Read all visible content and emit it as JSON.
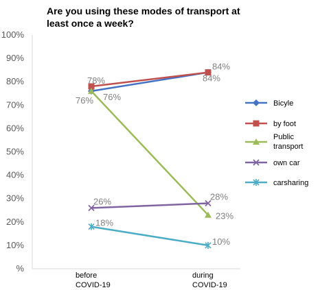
{
  "chart_data": {
    "type": "line",
    "title_line1": "Are you using these modes of transport at",
    "title_line2": "least once a week?",
    "categories": [
      {
        "line1": "before",
        "line2": "COVID-19"
      },
      {
        "line1": "during",
        "line2": "COVID-19"
      }
    ],
    "y_ticks": [
      "%",
      "10%",
      "20%",
      "30%",
      "40%",
      "50%",
      "60%",
      "70%",
      "80%",
      "90%",
      "100%"
    ],
    "ylim": [
      0,
      100
    ],
    "grid": false,
    "legend_position": "right",
    "series": [
      {
        "name": "Bicyle",
        "name_lines": [
          "Bicyle"
        ],
        "values": [
          76,
          84
        ],
        "labels": [
          "76%",
          "84%"
        ],
        "color": "#4472C4",
        "marker": "diamond"
      },
      {
        "name": "by foot",
        "name_lines": [
          "by foot"
        ],
        "values": [
          78,
          84
        ],
        "labels": [
          "78%",
          "84%"
        ],
        "color": "#C0504D",
        "marker": "square"
      },
      {
        "name": "Public transport",
        "name_lines": [
          "Public",
          "transport"
        ],
        "values": [
          76,
          23
        ],
        "labels": [
          "76%",
          "23%"
        ],
        "color": "#9BBB59",
        "marker": "triangle"
      },
      {
        "name": "own car",
        "name_lines": [
          "own car"
        ],
        "values": [
          26,
          28
        ],
        "labels": [
          "26%",
          "28%"
        ],
        "color": "#8064A2",
        "marker": "x"
      },
      {
        "name": "carsharing",
        "name_lines": [
          "carsharing"
        ],
        "values": [
          18,
          10
        ],
        "labels": [
          "18%",
          "10%"
        ],
        "color": "#4BACC6",
        "marker": "star"
      }
    ]
  }
}
